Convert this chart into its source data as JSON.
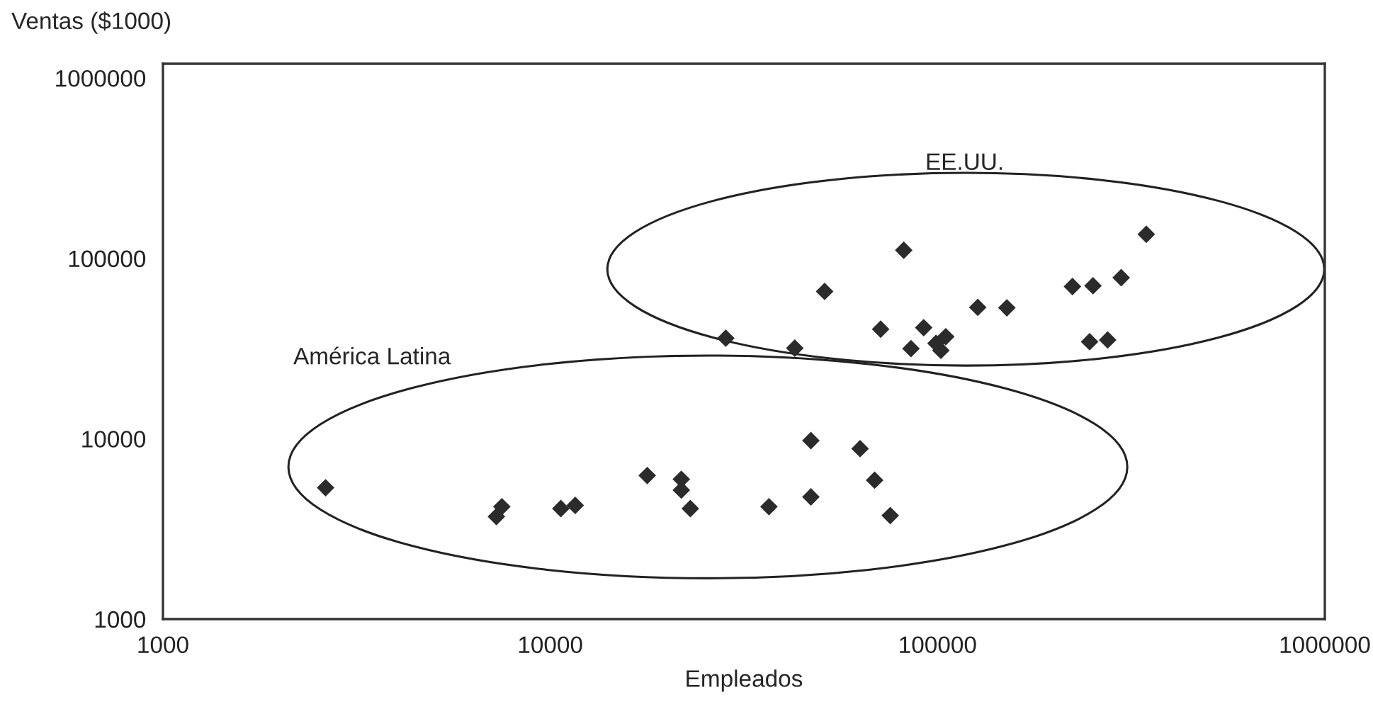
{
  "chart_data": {
    "type": "scatter",
    "xlabel": "Empleados",
    "ylabel": "Ventas ($1000)",
    "log": "xy",
    "xlim": [
      1000,
      1000000
    ],
    "ylim": [
      1000,
      1200000
    ],
    "xticks": [
      1000,
      10000,
      100000,
      1000000
    ],
    "yticks": [
      1000,
      10000,
      100000,
      1000000
    ],
    "grid": false,
    "legend": false,
    "marker": "diamond",
    "annotations": [
      "EE.UU.",
      "América Latina"
    ],
    "series": [
      {
        "color": "#2b2b2b",
        "x": [
          2630,
          7500,
          7260,
          10650,
          11600,
          17800,
          21800,
          21800,
          23000,
          36700,
          47100,
          47100,
          63100,
          68800,
          75500,
          28400,
          42800,
          51100,
          81800,
          71300,
          85400,
          92100,
          99100,
          105000,
          102000,
          127000,
          151000,
          223000,
          252000,
          298000,
          346000,
          247000,
          275000
        ],
        "values": [
          5350,
          4200,
          3700,
          4100,
          4270,
          6250,
          5960,
          5190,
          4100,
          4200,
          9770,
          4760,
          8810,
          5890,
          3750,
          36100,
          31800,
          65600,
          111000,
          40500,
          31600,
          41300,
          33800,
          36800,
          30900,
          53500,
          53200,
          69800,
          70500,
          78200,
          136000,
          34500,
          35300
        ]
      }
    ]
  }
}
